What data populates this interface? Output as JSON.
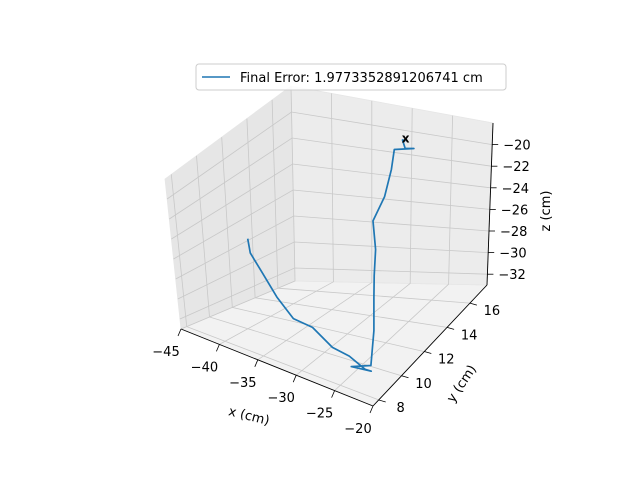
{
  "chart_data": {
    "type": "line",
    "projection": "3d",
    "title": "",
    "xlabel": "x (cm)",
    "ylabel": "y (cm)",
    "zlabel": "z (cm)",
    "x_ticks": [
      "−45",
      "−40",
      "−35",
      "−30",
      "−25",
      "−20"
    ],
    "y_ticks": [
      "8",
      "10",
      "12",
      "14",
      "16"
    ],
    "z_ticks": [
      "−20",
      "−22",
      "−24",
      "−26",
      "−28",
      "−30",
      "−32"
    ],
    "xlim": [
      -45,
      -20
    ],
    "ylim": [
      7.5,
      17.5
    ],
    "zlim": [
      -33,
      -18
    ],
    "grid": true,
    "legend_position": "top-center",
    "series": [
      {
        "name": "Final Error: 1.9773352891206741 cm",
        "color": "#1f77b4",
        "x": [
          -42.5,
          -41.5,
          -39.3,
          -36.5,
          -33.7,
          -32.0,
          -29.0,
          -26.8,
          -24.0,
          -22.5,
          -24.5,
          -22.0,
          -23.0,
          -24.5,
          -25.5,
          -26.5,
          -28.0,
          -28.3,
          -29.2,
          -30.0,
          -28.3,
          -29.8,
          -30.3,
          -30.2
        ],
        "y": [
          12.0,
          11.5,
          11.0,
          10.3,
          9.8,
          10.3,
          10.0,
          10.0,
          9.5,
          9.0,
          8.6,
          8.6,
          9.5,
          10.5,
          11.2,
          12.0,
          12.8,
          14.0,
          15.2,
          16.0,
          16.5,
          16.8,
          16.9,
          17.1
        ],
        "z": [
          -26.6,
          -27.4,
          -28.5,
          -29.7,
          -30.7,
          -31.5,
          -32.4,
          -32.7,
          -32.8,
          -32.2,
          -31.9,
          -31.3,
          -29.5,
          -27.9,
          -26.8,
          -25.4,
          -23.8,
          -22.7,
          -21.4,
          -20.4,
          -20.5,
          -20.9,
          -20.3,
          -20.5
        ]
      }
    ],
    "markers": [
      {
        "label": "x",
        "color": "#008000",
        "x": -30.2,
        "y": 17.1,
        "z": -20.3
      }
    ]
  }
}
